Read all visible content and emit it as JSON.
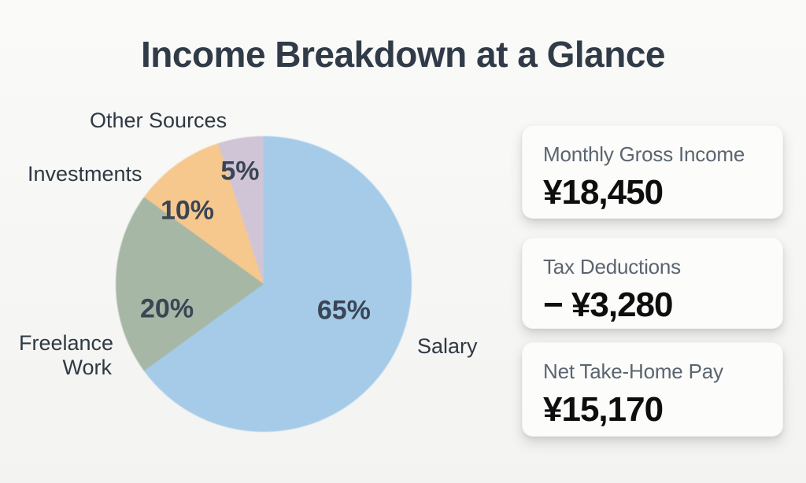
{
  "page": {
    "title": "Income Breakdown at a Glance",
    "background_color": "#f6f6f4",
    "title_color": "#313b48"
  },
  "chart_data": {
    "type": "pie",
    "title": "Income Breakdown at a Glance",
    "labels": [
      "Salary",
      "Freelance Work",
      "Investments",
      "Other Sources"
    ],
    "values": [
      65,
      20,
      10,
      5
    ],
    "percent_labels": [
      "65%",
      "20%",
      "10%",
      "5%"
    ],
    "colors": [
      "#a5cbe9",
      "#a6b7a5",
      "#f6c88e",
      "#cfc5d6"
    ],
    "start_angle_deg": 0,
    "direction": "clockwise",
    "legend_position": "around-slices"
  },
  "summary_cards": [
    {
      "label": "Monthly Gross Income",
      "value": "¥18,450"
    },
    {
      "label": "Tax Deductions",
      "value": "− ¥3,280"
    },
    {
      "label": "Net Take-Home Pay",
      "value": "¥15,170"
    }
  ]
}
